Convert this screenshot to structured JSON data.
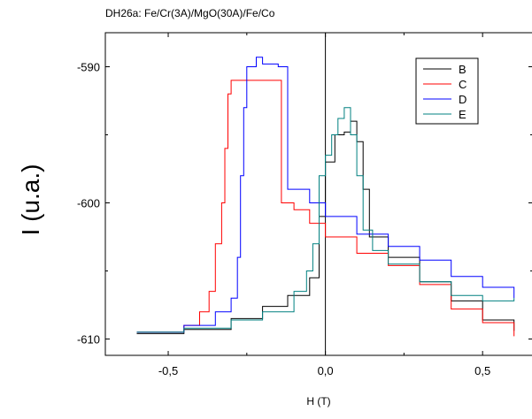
{
  "chart_data": {
    "type": "line",
    "title": "DH26a: Fe/Cr(3A)/MgO(30A)/Fe/Co",
    "xlabel": "H (T)",
    "ylabel": "I (u.a.)",
    "xlim": [
      -0.7,
      0.66
    ],
    "ylim": [
      -611.2,
      -587.5
    ],
    "x_ticks": [
      -0.5,
      0.0,
      0.5
    ],
    "x_tick_labels": [
      "-0,5",
      "0,0",
      "0,5"
    ],
    "y_ticks": [
      -590,
      -600,
      -610
    ],
    "y_tick_labels": [
      "-590",
      "-600",
      "-610"
    ],
    "grid": false,
    "legend_position": "top-right",
    "zero_lines": true,
    "series": [
      {
        "name": "B",
        "color": "#000000",
        "x": [
          -0.6,
          -0.45,
          -0.3,
          -0.2,
          -0.12,
          -0.05,
          -0.02,
          0.0,
          0.03,
          0.06,
          0.08,
          0.1,
          0.12,
          0.14,
          0.2,
          0.3,
          0.4,
          0.5,
          0.6
        ],
        "y": [
          -609.6,
          -609.3,
          -608.5,
          -607.6,
          -606.8,
          -605.5,
          -601.0,
          -597.0,
          -595.0,
          -594.8,
          -594.0,
          -595.5,
          -599.0,
          -602.5,
          -604.0,
          -605.8,
          -607.2,
          -608.6,
          -609.4
        ]
      },
      {
        "name": "C",
        "color": "#ff0000",
        "x": [
          -0.6,
          -0.45,
          -0.4,
          -0.37,
          -0.35,
          -0.33,
          -0.32,
          -0.31,
          -0.3,
          -0.2,
          -0.15,
          -0.14,
          -0.1,
          -0.05,
          0.0,
          0.1,
          0.2,
          0.3,
          0.4,
          0.5,
          0.6
        ],
        "y": [
          -609.5,
          -609.0,
          -608.0,
          -606.5,
          -603.0,
          -600.0,
          -596.0,
          -592.0,
          -591.0,
          -591.0,
          -591.0,
          -600.0,
          -600.5,
          -601.5,
          -602.5,
          -603.7,
          -604.6,
          -606.0,
          -607.8,
          -608.8,
          -609.8
        ]
      },
      {
        "name": "D",
        "color": "#0000ff",
        "x": [
          -0.6,
          -0.45,
          -0.35,
          -0.3,
          -0.28,
          -0.27,
          -0.26,
          -0.25,
          -0.24,
          -0.22,
          -0.2,
          -0.15,
          -0.13,
          -0.12,
          -0.05,
          0.0,
          0.1,
          0.2,
          0.3,
          0.4,
          0.5,
          0.6
        ],
        "y": [
          -609.5,
          -609.0,
          -608.0,
          -607.0,
          -604.0,
          -598.0,
          -593.0,
          -590.0,
          -590.0,
          -589.3,
          -589.8,
          -590.0,
          -590.0,
          -599.0,
          -600.0,
          -601.0,
          -602.3,
          -603.2,
          -604.2,
          -605.4,
          -606.2,
          -607.0
        ]
      },
      {
        "name": "E",
        "color": "#008080",
        "x": [
          -0.6,
          -0.45,
          -0.3,
          -0.2,
          -0.1,
          -0.06,
          -0.04,
          -0.02,
          0.0,
          0.02,
          0.04,
          0.06,
          0.08,
          0.1,
          0.12,
          0.15,
          0.2,
          0.3,
          0.4,
          0.5,
          0.6
        ],
        "y": [
          -609.5,
          -609.2,
          -608.6,
          -608.0,
          -606.5,
          -605.0,
          -603.0,
          -598.0,
          -596.5,
          -595.0,
          -593.8,
          -593.0,
          -595.0,
          -598.0,
          -602.0,
          -603.5,
          -604.5,
          -605.8,
          -606.8,
          -607.2,
          -607.0
        ]
      }
    ]
  }
}
